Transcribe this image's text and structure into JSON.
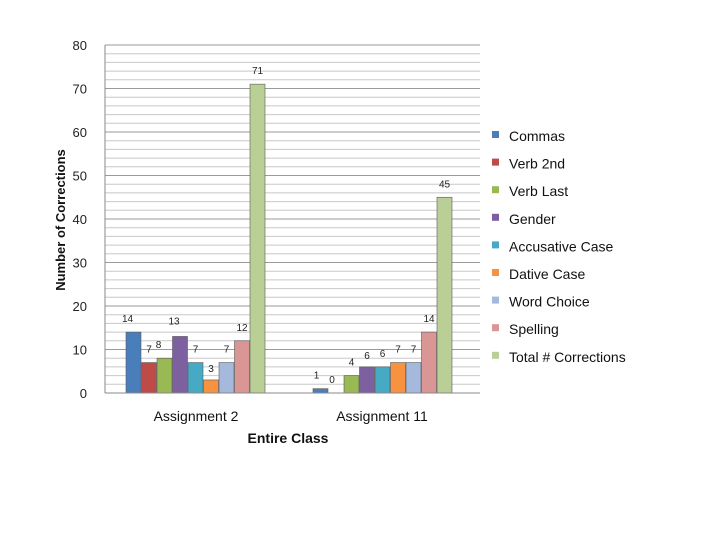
{
  "chart_data": {
    "type": "bar",
    "categories": [
      "Assignment 2",
      "Assignment 11"
    ],
    "xlabel": "Entire Class",
    "ylabel": "Number of Corrections",
    "ylim": [
      0,
      80
    ],
    "yticks": [
      0,
      10,
      20,
      30,
      40,
      50,
      60,
      70,
      80
    ],
    "grid": true,
    "legend_position": "right",
    "series": [
      {
        "name": "Commas",
        "color": "#4a7ebb",
        "values": [
          14,
          1
        ]
      },
      {
        "name": "Verb 2nd",
        "color": "#be4b48",
        "values": [
          7,
          0
        ]
      },
      {
        "name": "Verb Last",
        "color": "#98b954",
        "values": [
          8,
          4
        ]
      },
      {
        "name": "Gender",
        "color": "#7d60a0",
        "values": [
          13,
          6
        ]
      },
      {
        "name": "Accusative Case",
        "color": "#46aac5",
        "values": [
          7,
          6
        ]
      },
      {
        "name": "Dative Case",
        "color": "#f69240",
        "values": [
          3,
          7
        ]
      },
      {
        "name": "Word Choice",
        "color": "#a5b9dc",
        "values": [
          7,
          7
        ]
      },
      {
        "name": "Spelling",
        "color": "#d99694",
        "values": [
          12,
          14
        ]
      },
      {
        "name": "Total # Corrections",
        "color": "#b9cf95",
        "values": [
          71,
          45
        ]
      }
    ]
  }
}
